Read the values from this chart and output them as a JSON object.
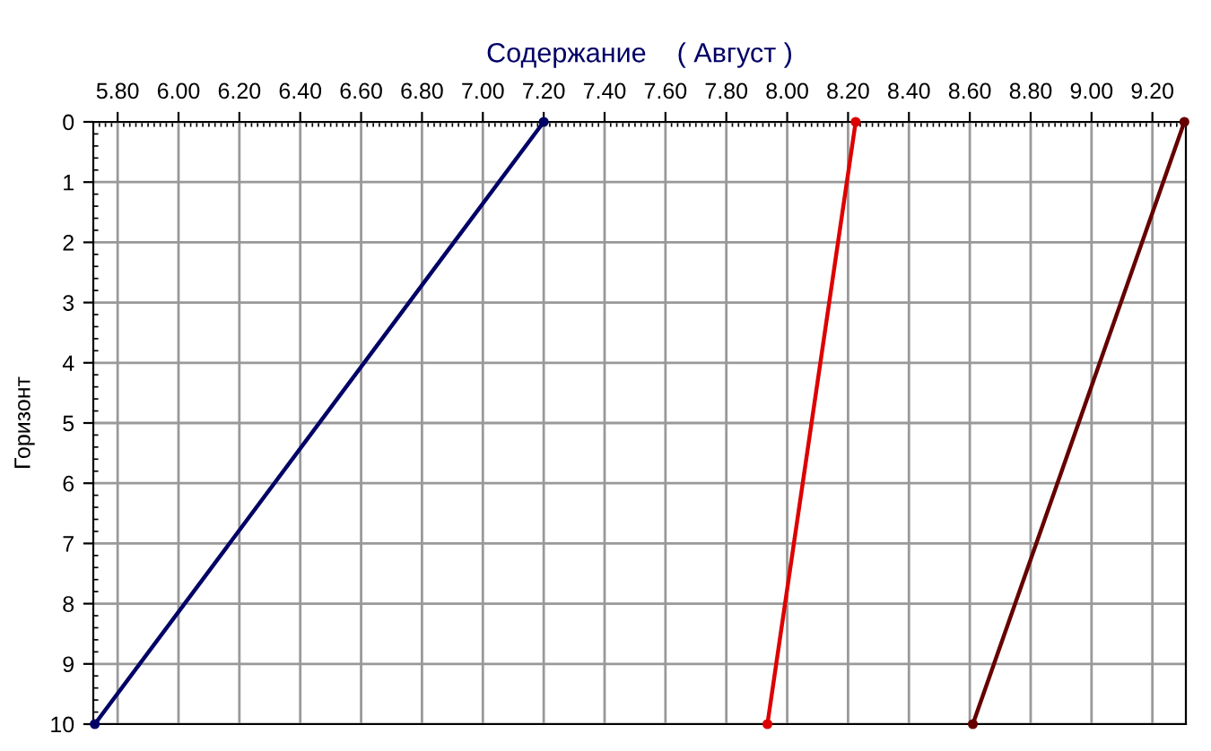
{
  "chart_data": {
    "type": "line",
    "title": "Содержание    ( Август )",
    "ylabel": "Горизонт",
    "series": [
      {
        "color": "#000066",
        "x": [
          7.2,
          5.725
        ],
        "values": [
          0,
          10
        ]
      },
      {
        "color": "#dd0000",
        "x": [
          8.225,
          7.935
        ],
        "values": [
          0,
          10
        ]
      },
      {
        "color": "#660000",
        "x": [
          9.305,
          8.61
        ],
        "values": [
          0,
          10
        ]
      }
    ],
    "xlim": [
      5.72,
      9.31
    ],
    "xticks": [
      {
        "value": 5.8,
        "label": "5.80"
      },
      {
        "value": 6.0,
        "label": "6.00"
      },
      {
        "value": 6.2,
        "label": "6.20"
      },
      {
        "value": 6.4,
        "label": "6.40"
      },
      {
        "value": 6.6,
        "label": "6.60"
      },
      {
        "value": 6.8,
        "label": "6.80"
      },
      {
        "value": 7.0,
        "label": "7.00"
      },
      {
        "value": 7.2,
        "label": "7.20"
      },
      {
        "value": 7.4,
        "label": "7.40"
      },
      {
        "value": 7.6,
        "label": "7.60"
      },
      {
        "value": 7.8,
        "label": "7.80"
      },
      {
        "value": 8.0,
        "label": "8.00"
      },
      {
        "value": 8.2,
        "label": "8.20"
      },
      {
        "value": 8.4,
        "label": "8.40"
      },
      {
        "value": 8.6,
        "label": "8.60"
      },
      {
        "value": 8.8,
        "label": "8.80"
      },
      {
        "value": 9.0,
        "label": "9.00"
      },
      {
        "value": 9.2,
        "label": "9.20"
      }
    ],
    "ylim": [
      10,
      0
    ],
    "yticks": [
      0,
      1,
      2,
      3,
      4,
      5,
      6,
      7,
      8,
      9,
      10
    ],
    "grid": true,
    "marker": "circle",
    "legend": false
  }
}
